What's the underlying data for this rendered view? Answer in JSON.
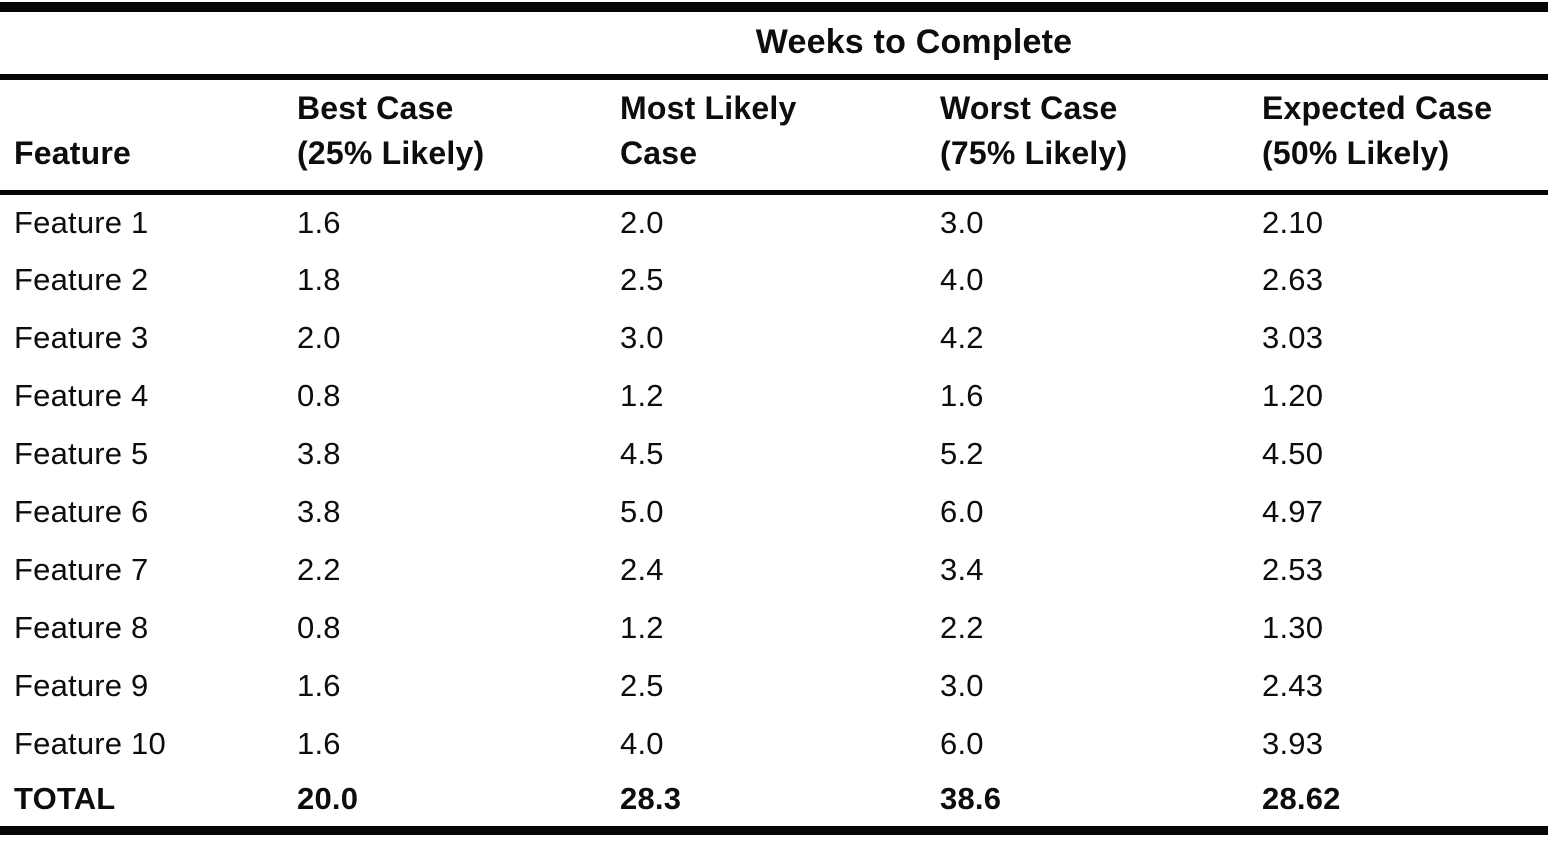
{
  "page": {
    "background": "#ffffff",
    "text_color": "#0d0d0d",
    "rule_color": "#050505"
  },
  "table": {
    "title": "Weeks to Complete",
    "columns": [
      {
        "line1": "Feature",
        "line2": ""
      },
      {
        "line1": "Best Case",
        "line2": "(25% Likely)"
      },
      {
        "line1": "Most Likely",
        "line2": "Case"
      },
      {
        "line1": "Worst Case",
        "line2": "(75% Likely)"
      },
      {
        "line1": "Expected Case",
        "line2": "(50% Likely)"
      }
    ],
    "rows": [
      {
        "feature": "Feature 1",
        "best": "1.6",
        "most": "2.0",
        "worst": "3.0",
        "expected": "2.10"
      },
      {
        "feature": "Feature 2",
        "best": "1.8",
        "most": "2.5",
        "worst": "4.0",
        "expected": "2.63"
      },
      {
        "feature": "Feature 3",
        "best": "2.0",
        "most": "3.0",
        "worst": "4.2",
        "expected": "3.03"
      },
      {
        "feature": "Feature 4",
        "best": "0.8",
        "most": "1.2",
        "worst": "1.6",
        "expected": "1.20"
      },
      {
        "feature": "Feature 5",
        "best": "3.8",
        "most": "4.5",
        "worst": "5.2",
        "expected": "4.50"
      },
      {
        "feature": "Feature 6",
        "best": "3.8",
        "most": "5.0",
        "worst": "6.0",
        "expected": "4.97"
      },
      {
        "feature": "Feature 7",
        "best": "2.2",
        "most": "2.4",
        "worst": "3.4",
        "expected": "2.53"
      },
      {
        "feature": "Feature 8",
        "best": "0.8",
        "most": "1.2",
        "worst": "2.2",
        "expected": "1.30"
      },
      {
        "feature": "Feature 9",
        "best": "1.6",
        "most": "2.5",
        "worst": "3.0",
        "expected": "2.43"
      },
      {
        "feature": "Feature 10",
        "best": "1.6",
        "most": "4.0",
        "worst": "6.0",
        "expected": "3.93"
      }
    ],
    "total": {
      "feature": "TOTAL",
      "best": "20.0",
      "most": "28.3",
      "worst": "38.6",
      "expected": "28.62"
    }
  }
}
